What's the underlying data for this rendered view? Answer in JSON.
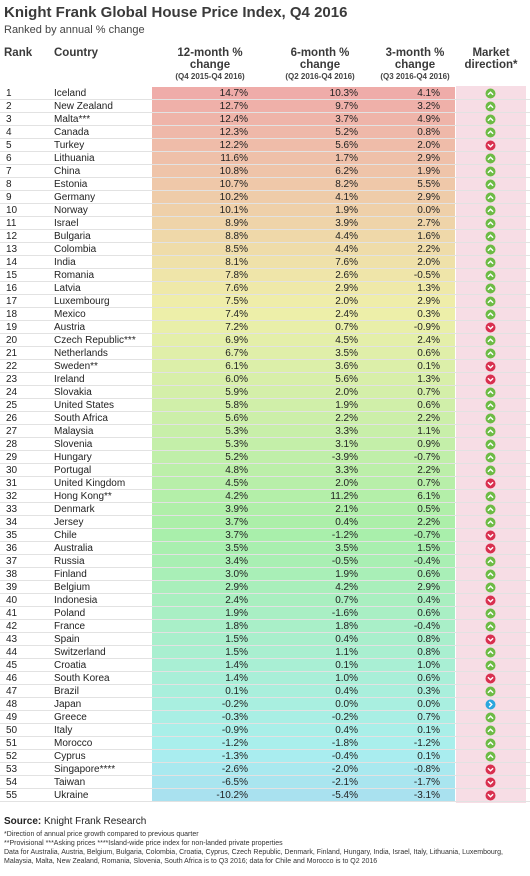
{
  "header": {
    "title": "Knight Frank Global House Price Index, Q4 2016",
    "subtitle": "Ranked by annual % change"
  },
  "table": {
    "columns": [
      {
        "label": "Rank"
      },
      {
        "label": "Country"
      },
      {
        "label": "12-month % change",
        "sublabel": "(Q4 2015-Q4 2016)"
      },
      {
        "label": "6-month % change",
        "sublabel": "(Q2 2016-Q4 2016)"
      },
      {
        "label": "3-month % change",
        "sublabel": "(Q3 2016-Q4 2016)"
      },
      {
        "label": "Market direction*"
      }
    ],
    "rows": [
      {
        "rank": "1",
        "country": "Iceland",
        "m12": "14.7%",
        "m6": "10.3%",
        "m3": "4.1%",
        "direction": "up"
      },
      {
        "rank": "2",
        "country": "New Zealand",
        "m12": "12.7%",
        "m6": "9.7%",
        "m3": "3.2%",
        "direction": "up"
      },
      {
        "rank": "3",
        "country": "Malta***",
        "m12": "12.4%",
        "m6": "3.7%",
        "m3": "4.9%",
        "direction": "up"
      },
      {
        "rank": "4",
        "country": "Canada",
        "m12": "12.3%",
        "m6": "5.2%",
        "m3": "0.8%",
        "direction": "up"
      },
      {
        "rank": "5",
        "country": "Turkey",
        "m12": "12.2%",
        "m6": "5.6%",
        "m3": "2.0%",
        "direction": "down"
      },
      {
        "rank": "6",
        "country": "Lithuania",
        "m12": "11.6%",
        "m6": "1.7%",
        "m3": "2.9%",
        "direction": "up"
      },
      {
        "rank": "7",
        "country": "China",
        "m12": "10.8%",
        "m6": "6.2%",
        "m3": "1.9%",
        "direction": "up"
      },
      {
        "rank": "8",
        "country": "Estonia",
        "m12": "10.7%",
        "m6": "8.2%",
        "m3": "5.5%",
        "direction": "up"
      },
      {
        "rank": "9",
        "country": "Germany",
        "m12": "10.2%",
        "m6": "4.1%",
        "m3": "2.9%",
        "direction": "up"
      },
      {
        "rank": "10",
        "country": "Norway",
        "m12": "10.1%",
        "m6": "1.9%",
        "m3": "0.0%",
        "direction": "up"
      },
      {
        "rank": "11",
        "country": "Israel",
        "m12": "8.9%",
        "m6": "3.9%",
        "m3": "2.7%",
        "direction": "up"
      },
      {
        "rank": "12",
        "country": "Bulgaria",
        "m12": "8.8%",
        "m6": "4.4%",
        "m3": "1.6%",
        "direction": "up"
      },
      {
        "rank": "13",
        "country": "Colombia",
        "m12": "8.5%",
        "m6": "4.4%",
        "m3": "2.2%",
        "direction": "up"
      },
      {
        "rank": "14",
        "country": "India",
        "m12": "8.1%",
        "m6": "7.6%",
        "m3": "2.0%",
        "direction": "up"
      },
      {
        "rank": "15",
        "country": "Romania",
        "m12": "7.8%",
        "m6": "2.6%",
        "m3": "-0.5%",
        "direction": "up"
      },
      {
        "rank": "16",
        "country": "Latvia",
        "m12": "7.6%",
        "m6": "2.9%",
        "m3": "1.3%",
        "direction": "up"
      },
      {
        "rank": "17",
        "country": "Luxembourg",
        "m12": "7.5%",
        "m6": "2.0%",
        "m3": "2.9%",
        "direction": "up"
      },
      {
        "rank": "18",
        "country": "Mexico",
        "m12": "7.4%",
        "m6": "2.4%",
        "m3": "0.3%",
        "direction": "up"
      },
      {
        "rank": "19",
        "country": "Austria",
        "m12": "7.2%",
        "m6": "0.7%",
        "m3": "-0.9%",
        "direction": "down"
      },
      {
        "rank": "20",
        "country": "Czech Republic***",
        "m12": "6.9%",
        "m6": "4.5%",
        "m3": "2.4%",
        "direction": "up"
      },
      {
        "rank": "21",
        "country": "Netherlands",
        "m12": "6.7%",
        "m6": "3.5%",
        "m3": "0.6%",
        "direction": "up"
      },
      {
        "rank": "22",
        "country": "Sweden**",
        "m12": "6.1%",
        "m6": "3.6%",
        "m3": "0.1%",
        "direction": "down"
      },
      {
        "rank": "23",
        "country": "Ireland",
        "m12": "6.0%",
        "m6": "5.6%",
        "m3": "1.3%",
        "direction": "down"
      },
      {
        "rank": "24",
        "country": "Slovakia",
        "m12": "5.9%",
        "m6": "2.0%",
        "m3": "0.7%",
        "direction": "up"
      },
      {
        "rank": "25",
        "country": "United States",
        "m12": "5.8%",
        "m6": "1.9%",
        "m3": "0.6%",
        "direction": "up"
      },
      {
        "rank": "26",
        "country": "South Africa",
        "m12": "5.6%",
        "m6": "2.2%",
        "m3": "2.2%",
        "direction": "up"
      },
      {
        "rank": "27",
        "country": "Malaysia",
        "m12": "5.3%",
        "m6": "3.3%",
        "m3": "1.1%",
        "direction": "up"
      },
      {
        "rank": "28",
        "country": "Slovenia",
        "m12": "5.3%",
        "m6": "3.1%",
        "m3": "0.9%",
        "direction": "up"
      },
      {
        "rank": "29",
        "country": "Hungary",
        "m12": "5.2%",
        "m6": "-3.9%",
        "m3": "-0.7%",
        "direction": "up"
      },
      {
        "rank": "30",
        "country": "Portugal",
        "m12": "4.8%",
        "m6": "3.3%",
        "m3": "2.2%",
        "direction": "up"
      },
      {
        "rank": "31",
        "country": "United Kingdom",
        "m12": "4.5%",
        "m6": "2.0%",
        "m3": "0.7%",
        "direction": "down"
      },
      {
        "rank": "32",
        "country": "Hong Kong**",
        "m12": "4.2%",
        "m6": "11.2%",
        "m3": "6.1%",
        "direction": "up"
      },
      {
        "rank": "33",
        "country": "Denmark",
        "m12": "3.9%",
        "m6": "2.1%",
        "m3": "0.5%",
        "direction": "up"
      },
      {
        "rank": "34",
        "country": "Jersey",
        "m12": "3.7%",
        "m6": "0.4%",
        "m3": "2.2%",
        "direction": "up"
      },
      {
        "rank": "35",
        "country": "Chile",
        "m12": "3.7%",
        "m6": "-1.2%",
        "m3": "-0.7%",
        "direction": "down"
      },
      {
        "rank": "36",
        "country": "Australia",
        "m12": "3.5%",
        "m6": "3.5%",
        "m3": "1.5%",
        "direction": "down"
      },
      {
        "rank": "37",
        "country": "Russia",
        "m12": "3.4%",
        "m6": "-0.5%",
        "m3": "-0.4%",
        "direction": "up"
      },
      {
        "rank": "38",
        "country": "Finland",
        "m12": "3.0%",
        "m6": "1.9%",
        "m3": "0.6%",
        "direction": "up"
      },
      {
        "rank": "39",
        "country": "Belgium",
        "m12": "2.9%",
        "m6": "4.2%",
        "m3": "2.9%",
        "direction": "up"
      },
      {
        "rank": "40",
        "country": "Indonesia",
        "m12": "2.4%",
        "m6": "0.7%",
        "m3": "0.4%",
        "direction": "down"
      },
      {
        "rank": "41",
        "country": "Poland",
        "m12": "1.9%",
        "m6": "-1.6%",
        "m3": "0.6%",
        "direction": "up"
      },
      {
        "rank": "42",
        "country": "France",
        "m12": "1.8%",
        "m6": "1.8%",
        "m3": "-0.4%",
        "direction": "up"
      },
      {
        "rank": "43",
        "country": "Spain",
        "m12": "1.5%",
        "m6": "0.4%",
        "m3": "0.8%",
        "direction": "down"
      },
      {
        "rank": "44",
        "country": "Switzerland",
        "m12": "1.5%",
        "m6": "1.1%",
        "m3": "0.8%",
        "direction": "up"
      },
      {
        "rank": "45",
        "country": "Croatia",
        "m12": "1.4%",
        "m6": "0.1%",
        "m3": "1.0%",
        "direction": "up"
      },
      {
        "rank": "46",
        "country": "South Korea",
        "m12": "1.4%",
        "m6": "1.0%",
        "m3": "0.6%",
        "direction": "down"
      },
      {
        "rank": "47",
        "country": "Brazil",
        "m12": "0.1%",
        "m6": "0.4%",
        "m3": "0.3%",
        "direction": "up"
      },
      {
        "rank": "48",
        "country": "Japan",
        "m12": "-0.2%",
        "m6": "0.0%",
        "m3": "0.0%",
        "direction": "flat"
      },
      {
        "rank": "49",
        "country": "Greece",
        "m12": "-0.3%",
        "m6": "-0.2%",
        "m3": "0.7%",
        "direction": "up"
      },
      {
        "rank": "50",
        "country": "Italy",
        "m12": "-0.9%",
        "m6": "0.4%",
        "m3": "0.1%",
        "direction": "up"
      },
      {
        "rank": "51",
        "country": "Morocco",
        "m12": "-1.2%",
        "m6": "-1.8%",
        "m3": "-1.2%",
        "direction": "up"
      },
      {
        "rank": "52",
        "country": "Cyprus",
        "m12": "-1.3%",
        "m6": "-0.4%",
        "m3": "0.1%",
        "direction": "up"
      },
      {
        "rank": "53",
        "country": "Singapore****",
        "m12": "-2.6%",
        "m6": "-2.0%",
        "m3": "-0.8%",
        "direction": "down"
      },
      {
        "rank": "54",
        "country": "Taiwan",
        "m12": "-6.5%",
        "m6": "-2.1%",
        "m3": "-1.7%",
        "direction": "down"
      },
      {
        "rank": "55",
        "country": "Ukraine",
        "m12": "-10.2%",
        "m6": "-5.4%",
        "m3": "-3.1%",
        "direction": "down"
      }
    ]
  },
  "footer": {
    "source_label": "Source:",
    "source": "Knight Frank Research",
    "notes": [
      "*Direction of annual price growth compared to previous quarter",
      "**Provisional ***Asking prices ****Island-wide price index for non-landed private properties",
      "Data for Australia, Austria, Belgium, Bulgaria, Colombia, Croatia, Cyprus, Czech Republic, Denmark, Finland, Hungary, India, Israel, Italy, Lithuania, Luxembourg, Malaysia, Malta, New Zealand, Romania, Slovenia, South Africa is to Q3 2016; data for Chile and Morocco is to Q2 2016"
    ]
  }
}
